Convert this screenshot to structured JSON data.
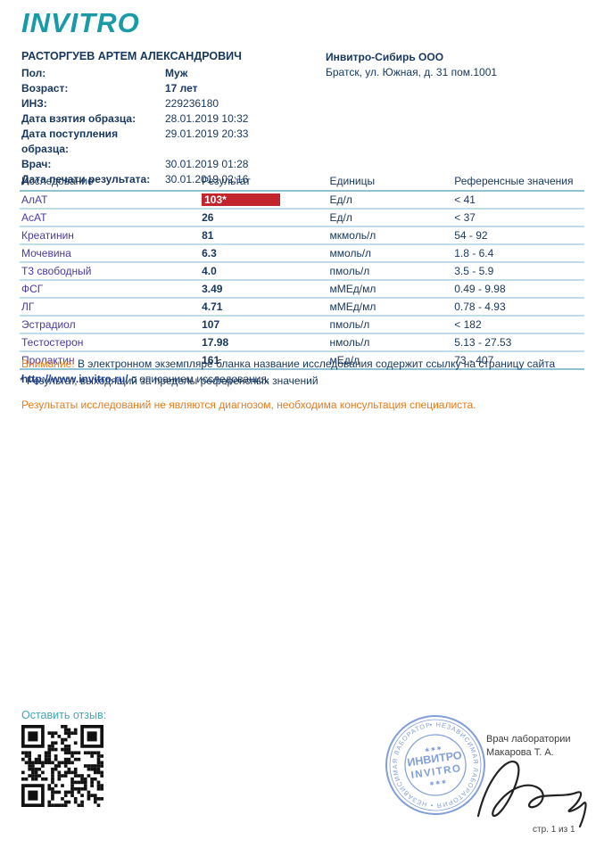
{
  "logo": {
    "text": "INVITRO"
  },
  "patient": {
    "name": "РАСТОРГУЕВ АРТЕМ АЛЕКСАНДРОВИЧ",
    "fields": [
      {
        "label": "Пол:",
        "value": "Муж",
        "bold": true
      },
      {
        "label": "Возраст:",
        "value": "17 лет",
        "bold": true
      },
      {
        "label": "ИНЗ:",
        "value": "229236180",
        "bold": false
      },
      {
        "label": "Дата взятия образца:",
        "value": "28.01.2019 10:32",
        "bold": false
      },
      {
        "label": "Дата поступления образца:",
        "value": "29.01.2019 20:33",
        "bold": false
      },
      {
        "label": "Врач:",
        "value": "30.01.2019 01:28",
        "bold": false
      },
      {
        "label": "Дата печати результата:",
        "value": "30.01.2019 02:16",
        "bold": false
      }
    ]
  },
  "organization": {
    "name": "Инвитро-Сибирь ООО",
    "address": "Братск, ул. Южная, д. 31 пом.1001"
  },
  "results_table": {
    "headers": [
      "Исследование",
      "Результат",
      "Единицы",
      "Референсные значения"
    ],
    "rows": [
      {
        "test": "АлАТ",
        "result": "103*",
        "flagged": true,
        "units": "Ед/л",
        "reference": "< 41"
      },
      {
        "test": "АсАТ",
        "result": "26",
        "flagged": false,
        "units": "Ед/л",
        "reference": "< 37"
      },
      {
        "test": "Креатинин",
        "result": "81",
        "flagged": false,
        "units": "мкмоль/л",
        "reference": "54 - 92"
      },
      {
        "test": "Мочевина",
        "result": "6.3",
        "flagged": false,
        "units": "ммоль/л",
        "reference": "1.8 - 6.4"
      },
      {
        "test": "Т3 свободный",
        "result": "4.0",
        "flagged": false,
        "units": "пмоль/л",
        "reference": "3.5 - 5.9"
      },
      {
        "test": "ФСГ",
        "result": "3.49",
        "flagged": false,
        "units": "мМЕд/мл",
        "reference": "0.49 - 9.98"
      },
      {
        "test": "ЛГ",
        "result": "4.71",
        "flagged": false,
        "units": "мМЕд/мл",
        "reference": "0.78 - 4.93"
      },
      {
        "test": "Эстрадиол",
        "result": "107",
        "flagged": false,
        "units": "пмоль/л",
        "reference": "< 182"
      },
      {
        "test": "Тестостерон",
        "result": "17.98",
        "flagged": false,
        "units": "нмоль/л",
        "reference": "5.13 - 27.53"
      },
      {
        "test": "Пролактин",
        "result": "161",
        "flagged": false,
        "units": "мЕд/л",
        "reference": "73 - 407"
      }
    ],
    "footnote": "* Результат, выходящий за пределы референсных значений"
  },
  "notices": {
    "attention_label": "Внимание!",
    "attention_text": " В электронном экземпляре бланка название исследования содержит ссылку на страницу сайта ",
    "attention_link": "http://www.invitro.ru/",
    "attention_tail": " с описанием исследования.",
    "disclaimer": "Результаты исследований не являются диагнозом, необходима консультация специалиста."
  },
  "footer": {
    "feedback_label": "Оставить отзыв:",
    "doctor_title": "Врач лаборатории",
    "doctor_name": "Макарова Т. А.",
    "page_info": "стр. 1 из 1",
    "stamp": {
      "center_line1": "ИНВИТРО",
      "center_line2": "INVITRO",
      "ring_text": "• НЕЗАВИСИМАЯ  ЛАБОРАТОРИЯ •  НЕЗАВИСИМАЯ  ЛАБОРАТОРИЯ"
    }
  },
  "colors": {
    "brand_teal": "#189ba6",
    "text_navy": "#17365d",
    "flag_red": "#c2252b",
    "warning_orange": "#e87b1e",
    "test_link": "#4b3aa0",
    "table_line": "#8fc3d4",
    "stamp_blue": "#6c8ed2"
  }
}
